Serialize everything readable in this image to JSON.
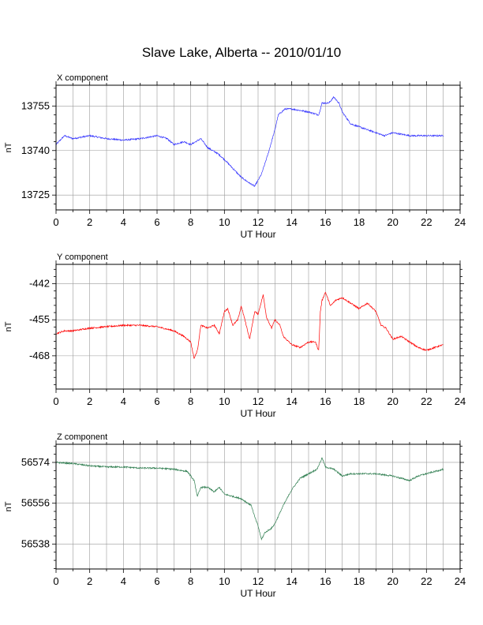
{
  "title": "Slave Lake, Alberta -- 2010/01/10",
  "colors": {
    "x_component": "#3333ff",
    "y_component": "#ff0000",
    "z_component": "#2e7d4f",
    "grid": "#9a9a9a",
    "frame": "#000000"
  },
  "chart_data": [
    {
      "type": "line",
      "title": "X component",
      "xlabel": "UT Hour",
      "ylabel": "nT",
      "xlim": [
        0,
        24
      ],
      "ylim": [
        13720,
        13762
      ],
      "xticks": [
        "0",
        "2",
        "4",
        "6",
        "8",
        "10",
        "12",
        "14",
        "16",
        "18",
        "20",
        "22",
        "24"
      ],
      "yticks": [
        13725,
        13740,
        13755
      ],
      "ytick_labels": [
        "13725",
        "13740",
        "13755"
      ],
      "grid": true,
      "series": [
        {
          "color": "#3333ff",
          "points": [
            [
              0,
              13742
            ],
            [
              0.5,
              13745
            ],
            [
              1,
              13744
            ],
            [
              2,
              13745
            ],
            [
              3,
              13744
            ],
            [
              4,
              13743.5
            ],
            [
              5,
              13744
            ],
            [
              6,
              13745
            ],
            [
              6.6,
              13744
            ],
            [
              7,
              13742
            ],
            [
              7.6,
              13743
            ],
            [
              8,
              13742
            ],
            [
              8.6,
              13744
            ],
            [
              9,
              13741
            ],
            [
              9.6,
              13739
            ],
            [
              10,
              13737
            ],
            [
              10.5,
              13734
            ],
            [
              11,
              13731
            ],
            [
              11.5,
              13729
            ],
            [
              11.8,
              13728
            ],
            [
              12.2,
              13732
            ],
            [
              12.6,
              13739
            ],
            [
              13,
              13747
            ],
            [
              13.2,
              13752
            ],
            [
              13.6,
              13754
            ],
            [
              14,
              13754
            ],
            [
              14.5,
              13753.5
            ],
            [
              15,
              13753
            ],
            [
              15.6,
              13752
            ],
            [
              15.8,
              13756
            ],
            [
              16.2,
              13756
            ],
            [
              16.5,
              13758
            ],
            [
              16.8,
              13756
            ],
            [
              17,
              13753
            ],
            [
              17.5,
              13749
            ],
            [
              18,
              13748
            ],
            [
              18.5,
              13747
            ],
            [
              19,
              13746
            ],
            [
              19.5,
              13745
            ],
            [
              20,
              13746
            ],
            [
              21,
              13745
            ],
            [
              22,
              13745
            ],
            [
              23,
              13745
            ]
          ]
        }
      ]
    },
    {
      "type": "line",
      "title": "Y component",
      "xlabel": "UT Hour",
      "ylabel": "nT",
      "xlim": [
        0,
        24
      ],
      "ylim": [
        -480,
        -435
      ],
      "xticks": [
        "0",
        "2",
        "4",
        "6",
        "8",
        "10",
        "12",
        "14",
        "16",
        "18",
        "20",
        "22",
        "24"
      ],
      "yticks": [
        -468,
        -455,
        -442
      ],
      "ytick_labels": [
        "-468",
        "-455",
        "-442"
      ],
      "grid": true,
      "series": [
        {
          "color": "#ff0000",
          "points": [
            [
              0,
              -460
            ],
            [
              0.5,
              -459
            ],
            [
              1,
              -459
            ],
            [
              2,
              -458
            ],
            [
              3,
              -457.5
            ],
            [
              4,
              -457
            ],
            [
              5,
              -457
            ],
            [
              6,
              -457.5
            ],
            [
              7,
              -459
            ],
            [
              7.6,
              -461
            ],
            [
              8,
              -463
            ],
            [
              8.2,
              -469
            ],
            [
              8.4,
              -466
            ],
            [
              8.6,
              -457
            ],
            [
              9,
              -458
            ],
            [
              9.4,
              -457
            ],
            [
              9.7,
              -460
            ],
            [
              10,
              -452
            ],
            [
              10.2,
              -451
            ],
            [
              10.5,
              -457
            ],
            [
              10.8,
              -455
            ],
            [
              11,
              -450
            ],
            [
              11.3,
              -457
            ],
            [
              11.5,
              -462
            ],
            [
              11.8,
              -452
            ],
            [
              12,
              -453
            ],
            [
              12.3,
              -446
            ],
            [
              12.5,
              -454
            ],
            [
              12.8,
              -458
            ],
            [
              13,
              -455
            ],
            [
              13.3,
              -457
            ],
            [
              13.5,
              -461
            ],
            [
              14,
              -464
            ],
            [
              14.5,
              -465
            ],
            [
              15,
              -463
            ],
            [
              15.4,
              -463
            ],
            [
              15.6,
              -466
            ],
            [
              15.7,
              -452
            ],
            [
              15.8,
              -448
            ],
            [
              16,
              -445
            ],
            [
              16.3,
              -450
            ],
            [
              16.6,
              -448
            ],
            [
              17,
              -447
            ],
            [
              17.5,
              -449
            ],
            [
              18,
              -451
            ],
            [
              18.5,
              -449
            ],
            [
              19,
              -452
            ],
            [
              19.3,
              -457
            ],
            [
              19.6,
              -458
            ],
            [
              20,
              -462
            ],
            [
              20.5,
              -461
            ],
            [
              21,
              -463
            ],
            [
              21.5,
              -465
            ],
            [
              22,
              -466
            ],
            [
              22.5,
              -465
            ],
            [
              23,
              -464
            ]
          ]
        }
      ]
    },
    {
      "type": "line",
      "title": "Z component",
      "xlabel": "UT Hour",
      "ylabel": "nT",
      "xlim": [
        0,
        24
      ],
      "ylim": [
        56527,
        56582
      ],
      "xticks": [
        "0",
        "2",
        "4",
        "6",
        "8",
        "10",
        "12",
        "14",
        "16",
        "18",
        "20",
        "22",
        "24"
      ],
      "yticks": [
        56538,
        56556,
        56574
      ],
      "ytick_labels": [
        "56538",
        "56556",
        "56574"
      ],
      "grid": true,
      "series": [
        {
          "color": "#2e7d4f",
          "points": [
            [
              0,
              56574
            ],
            [
              1,
              56573.5
            ],
            [
              2,
              56572.5
            ],
            [
              3,
              56572
            ],
            [
              4,
              56572
            ],
            [
              5,
              56571.5
            ],
            [
              6,
              56571.5
            ],
            [
              7,
              56571
            ],
            [
              7.8,
              56570
            ],
            [
              8,
              56568
            ],
            [
              8.2,
              56566
            ],
            [
              8.4,
              56559
            ],
            [
              8.6,
              56563
            ],
            [
              9,
              56563
            ],
            [
              9.4,
              56561
            ],
            [
              9.7,
              56563
            ],
            [
              10,
              56560
            ],
            [
              10.5,
              56559
            ],
            [
              11,
              56558
            ],
            [
              11.4,
              56556
            ],
            [
              11.6,
              56555
            ],
            [
              11.8,
              56550
            ],
            [
              12,
              56546
            ],
            [
              12.2,
              56540
            ],
            [
              12.4,
              56543
            ],
            [
              12.8,
              56545
            ],
            [
              13,
              56547
            ],
            [
              13.5,
              56555
            ],
            [
              14,
              56562
            ],
            [
              14.5,
              56567
            ],
            [
              15,
              56569
            ],
            [
              15.5,
              56571
            ],
            [
              15.8,
              56576
            ],
            [
              16,
              56572
            ],
            [
              16.5,
              56571
            ],
            [
              17,
              56568
            ],
            [
              17.5,
              56569
            ],
            [
              18,
              56569
            ],
            [
              19,
              56569
            ],
            [
              20,
              56568
            ],
            [
              20.5,
              56567
            ],
            [
              21,
              56566
            ],
            [
              21.5,
              56568
            ],
            [
              22,
              56569
            ],
            [
              22.5,
              56570
            ],
            [
              23,
              56571
            ]
          ]
        }
      ]
    }
  ]
}
